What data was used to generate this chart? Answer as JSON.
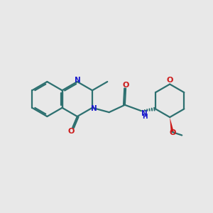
{
  "bg_color": "#e8e8e8",
  "bond_color": "#2d7070",
  "blue_color": "#1a1acc",
  "red_color": "#cc1a1a",
  "lw": 1.6,
  "figsize": [
    3.0,
    3.0
  ],
  "dpi": 100,
  "xlim": [
    0,
    10
  ],
  "ylim": [
    0,
    10
  ]
}
